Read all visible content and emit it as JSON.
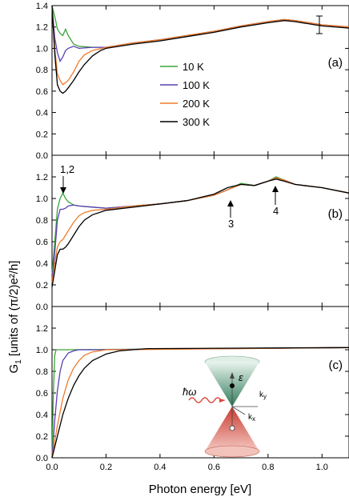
{
  "chart_data": {
    "type": "line",
    "xlabel": "Photon energy [eV]",
    "ylabel_main": "G",
    "ylabel_sub": "1",
    "ylabel_rest": "  [units of (π/2)e²/h]",
    "xlim": [
      0.0,
      1.1
    ],
    "ylim": [
      0.0,
      1.4
    ],
    "xticks": [
      "0.0",
      "0.2",
      "0.4",
      "0.6",
      "0.8",
      "1.0"
    ],
    "yticks_top": [
      "0.0",
      "0.2",
      "0.4",
      "0.6",
      "0.8",
      "1.0",
      "1.2",
      "1.4"
    ],
    "yticks_mid": [
      "0.0",
      "0.2",
      "0.4",
      "0.6",
      "0.8",
      "1.0",
      "1.2"
    ],
    "yticks_bot": [
      "0.0",
      "0.2",
      "0.4",
      "0.6",
      "0.8",
      "1.0",
      "1.2"
    ],
    "colors": {
      "10 K": "#3aa53a",
      "100 K": "#5a3fb5",
      "200 K": "#f07a2a",
      "300 K": "#000000"
    },
    "legend": [
      "10 K",
      "100 K",
      "200 K",
      "300 K"
    ],
    "panels": [
      {
        "label": "(a)",
        "series": [
          {
            "name": "10 K",
            "x": [
              0.0,
              0.01,
              0.02,
              0.03,
              0.04,
              0.05,
              0.06,
              0.08,
              0.1,
              0.15,
              0.2,
              0.3,
              0.4,
              0.5,
              0.6,
              0.7,
              0.8,
              0.86,
              0.9,
              1.0,
              1.1
            ],
            "y": [
              1.4,
              1.3,
              1.18,
              1.14,
              1.12,
              1.18,
              1.12,
              1.04,
              1.02,
              1.01,
              1.01,
              1.05,
              1.08,
              1.12,
              1.16,
              1.21,
              1.25,
              1.27,
              1.26,
              1.22,
              1.2
            ]
          },
          {
            "name": "100 K",
            "x": [
              0.0,
              0.01,
              0.02,
              0.03,
              0.04,
              0.05,
              0.06,
              0.08,
              0.1,
              0.15,
              0.2,
              0.3,
              0.4,
              0.5,
              0.6,
              0.7,
              0.8,
              0.86,
              0.9,
              1.0,
              1.1
            ],
            "y": [
              1.4,
              1.1,
              0.96,
              0.88,
              0.92,
              0.98,
              1.0,
              1.02,
              1.0,
              1.01,
              1.01,
              1.05,
              1.08,
              1.12,
              1.16,
              1.21,
              1.25,
              1.27,
              1.26,
              1.22,
              1.2
            ]
          },
          {
            "name": "200 K",
            "x": [
              0.0,
              0.01,
              0.02,
              0.03,
              0.04,
              0.05,
              0.06,
              0.08,
              0.1,
              0.12,
              0.15,
              0.2,
              0.3,
              0.4,
              0.5,
              0.6,
              0.7,
              0.8,
              0.86,
              0.9,
              1.0,
              1.1
            ],
            "y": [
              1.4,
              1.0,
              0.76,
              0.7,
              0.66,
              0.68,
              0.7,
              0.78,
              0.88,
              0.94,
              0.98,
              1.01,
              1.05,
              1.08,
              1.12,
              1.16,
              1.21,
              1.25,
              1.27,
              1.26,
              1.22,
              1.2
            ]
          },
          {
            "name": "300 K",
            "x": [
              0.0,
              0.01,
              0.02,
              0.03,
              0.04,
              0.05,
              0.06,
              0.08,
              0.1,
              0.12,
              0.15,
              0.18,
              0.2,
              0.3,
              0.4,
              0.5,
              0.6,
              0.7,
              0.8,
              0.86,
              0.9,
              1.0,
              1.1
            ],
            "y": [
              1.4,
              0.95,
              0.66,
              0.6,
              0.58,
              0.6,
              0.63,
              0.7,
              0.78,
              0.85,
              0.93,
              0.98,
              1.0,
              1.04,
              1.07,
              1.11,
              1.15,
              1.2,
              1.24,
              1.26,
              1.25,
              1.21,
              1.19
            ]
          }
        ]
      },
      {
        "label": "(b)",
        "annotations": [
          "1,2",
          "3",
          "4"
        ],
        "series": [
          {
            "name": "10 K",
            "x": [
              0.0,
              0.01,
              0.02,
              0.03,
              0.04,
              0.05,
              0.06,
              0.08,
              0.1,
              0.15,
              0.2,
              0.3,
              0.4,
              0.5,
              0.6,
              0.65,
              0.7,
              0.75,
              0.8,
              0.83,
              0.86,
              0.9,
              1.0,
              1.1
            ],
            "y": [
              0.3,
              0.6,
              0.9,
              1.0,
              1.05,
              1.0,
              0.97,
              0.94,
              0.93,
              0.92,
              0.91,
              0.93,
              0.95,
              0.98,
              1.03,
              1.08,
              1.14,
              1.12,
              1.16,
              1.2,
              1.17,
              1.13,
              1.1,
              1.05
            ]
          },
          {
            "name": "100 K",
            "x": [
              0.0,
              0.01,
              0.02,
              0.03,
              0.04,
              0.05,
              0.06,
              0.08,
              0.1,
              0.15,
              0.2,
              0.3,
              0.4,
              0.5,
              0.6,
              0.65,
              0.7,
              0.75,
              0.8,
              0.83,
              0.86,
              0.9,
              1.0,
              1.1
            ],
            "y": [
              0.25,
              0.5,
              0.8,
              0.9,
              0.9,
              0.91,
              0.93,
              0.94,
              0.93,
              0.92,
              0.91,
              0.93,
              0.95,
              0.98,
              1.03,
              1.08,
              1.13,
              1.12,
              1.16,
              1.19,
              1.17,
              1.13,
              1.1,
              1.05
            ]
          },
          {
            "name": "200 K",
            "x": [
              0.0,
              0.01,
              0.02,
              0.03,
              0.04,
              0.05,
              0.06,
              0.08,
              0.1,
              0.12,
              0.15,
              0.2,
              0.3,
              0.4,
              0.5,
              0.6,
              0.65,
              0.7,
              0.75,
              0.8,
              0.83,
              0.86,
              0.9,
              1.0,
              1.1
            ],
            "y": [
              0.22,
              0.4,
              0.55,
              0.6,
              0.62,
              0.66,
              0.7,
              0.78,
              0.84,
              0.87,
              0.89,
              0.9,
              0.93,
              0.95,
              0.98,
              1.03,
              1.08,
              1.13,
              1.12,
              1.16,
              1.19,
              1.17,
              1.13,
              1.1,
              1.05
            ]
          },
          {
            "name": "300 K",
            "x": [
              0.0,
              0.01,
              0.02,
              0.03,
              0.04,
              0.05,
              0.06,
              0.08,
              0.1,
              0.12,
              0.15,
              0.2,
              0.3,
              0.4,
              0.5,
              0.6,
              0.65,
              0.7,
              0.75,
              0.8,
              0.83,
              0.86,
              0.9,
              1.0,
              1.1
            ],
            "y": [
              0.18,
              0.33,
              0.48,
              0.53,
              0.53,
              0.55,
              0.58,
              0.66,
              0.74,
              0.8,
              0.85,
              0.89,
              0.92,
              0.95,
              0.98,
              1.04,
              1.1,
              1.13,
              1.12,
              1.16,
              1.18,
              1.16,
              1.13,
              1.1,
              1.05
            ]
          }
        ]
      },
      {
        "label": "(c)",
        "series": [
          {
            "name": "10 K",
            "x": [
              0.0,
              0.005,
              0.01,
              0.015,
              0.02,
              0.03,
              0.05,
              1.1
            ],
            "y": [
              0.0,
              0.6,
              0.95,
              1.0,
              1.0,
              1.0,
              1.0,
              1.02
            ]
          },
          {
            "name": "100 K",
            "x": [
              0.0,
              0.01,
              0.02,
              0.03,
              0.04,
              0.06,
              0.08,
              0.1,
              0.15,
              1.1
            ],
            "y": [
              0.0,
              0.35,
              0.62,
              0.8,
              0.9,
              0.97,
              0.99,
              1.0,
              1.0,
              1.02
            ]
          },
          {
            "name": "200 K",
            "x": [
              0.0,
              0.02,
              0.04,
              0.06,
              0.08,
              0.1,
              0.12,
              0.15,
              0.2,
              0.25,
              1.1
            ],
            "y": [
              0.0,
              0.3,
              0.55,
              0.72,
              0.83,
              0.9,
              0.95,
              0.98,
              1.0,
              1.0,
              1.02
            ]
          },
          {
            "name": "300 K",
            "x": [
              0.0,
              0.02,
              0.04,
              0.06,
              0.08,
              0.1,
              0.12,
              0.15,
              0.2,
              0.25,
              0.3,
              0.35,
              1.1
            ],
            "y": [
              0.0,
              0.2,
              0.4,
              0.55,
              0.67,
              0.76,
              0.83,
              0.9,
              0.96,
              0.99,
              1.0,
              1.01,
              1.02
            ]
          }
        ],
        "inset_labels": {
          "hbar_omega": "ħω",
          "epsilon": "ε",
          "ky": "k",
          "ky_sub": "y",
          "kx": "k",
          "kx_sub": "x"
        }
      }
    ]
  }
}
